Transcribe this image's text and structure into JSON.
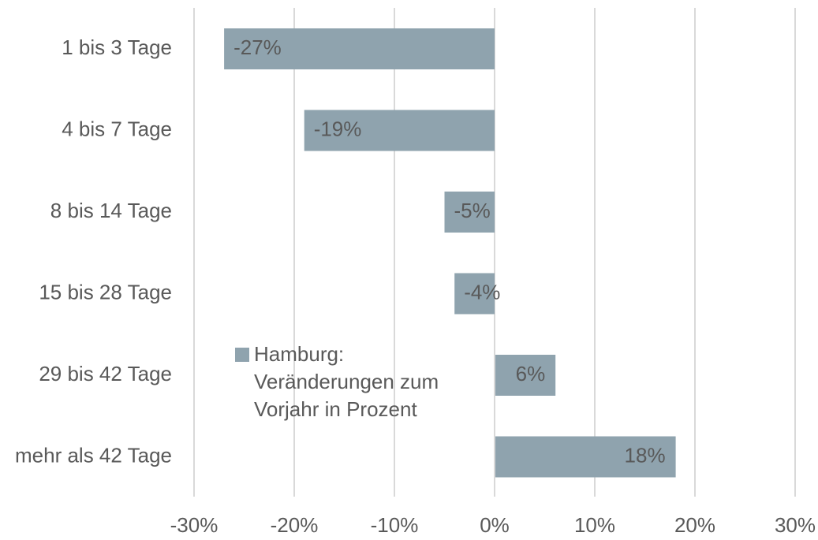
{
  "chart_data": {
    "type": "bar",
    "orientation": "horizontal",
    "categories": [
      "1 bis 3 Tage",
      "4 bis 7 Tage",
      "8 bis 14 Tage",
      "15 bis 28 Tage",
      "29 bis 42 Tage",
      "mehr als 42 Tage"
    ],
    "series": [
      {
        "name": "Hamburg: Veränderungen zum Vorjahr in Prozent",
        "color": "#8fa3ae",
        "values": [
          -27,
          -19,
          -5,
          -4,
          6,
          18
        ],
        "value_labels": [
          "-27%",
          "-19%",
          "-5%",
          "-4%",
          "6%",
          "18%"
        ]
      }
    ],
    "xlim": [
      -30,
      30
    ],
    "xticks": [
      {
        "value": -30,
        "label": "-30%"
      },
      {
        "value": -20,
        "label": "-20%"
      },
      {
        "value": -10,
        "label": "-10%"
      },
      {
        "value": 0,
        "label": "0%"
      },
      {
        "value": 10,
        "label": "10%"
      },
      {
        "value": 20,
        "label": "20%"
      },
      {
        "value": 30,
        "label": "30%"
      }
    ],
    "grid": true,
    "legend": "center"
  }
}
